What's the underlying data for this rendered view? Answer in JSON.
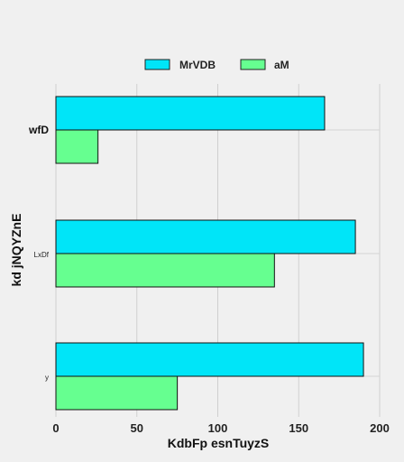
{
  "chart_data": {
    "type": "bar",
    "orientation": "horizontal",
    "categories": [
      "wfD",
      "LxDf",
      "y"
    ],
    "series": [
      {
        "name": "MrVDB",
        "values": [
          166,
          185,
          190
        ],
        "color": "#00e5f8"
      },
      {
        "name": "aM",
        "values": [
          26,
          135,
          75
        ],
        "color": "#66ff90"
      }
    ],
    "xlabel": "KdbFp esnTuyzS",
    "ylabel": "kd jNQYZnE",
    "xlim": [
      0,
      200
    ],
    "xticks": [
      "0",
      "50",
      "100",
      "150",
      "200"
    ],
    "grid": true,
    "legend_position": "top-center"
  }
}
